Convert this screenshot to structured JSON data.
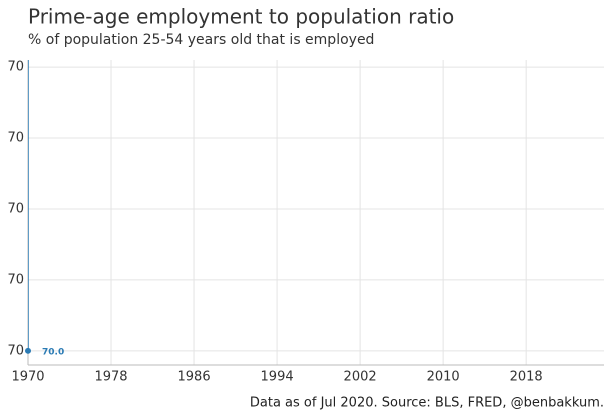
{
  "chart_data": {
    "type": "line",
    "title": "Prime-age employment to population ratio",
    "subtitle": "% of population 25-54 years old that is employed",
    "caption": "Data as of Jul 2020. Source: BLS, FRED, @benbakkum.",
    "x": [
      1970,
      1970
    ],
    "series": [
      {
        "color": "#2b7bb4",
        "values": [
          70,
          70.041
        ],
        "value_labels": [
          "70.0",
          null
        ]
      }
    ],
    "xlim": [
      1970,
      2025.5
    ],
    "xticks": [
      1970,
      1978,
      1986,
      1994,
      2002,
      2010,
      2018
    ],
    "ylim": [
      69.998,
      70.041
    ],
    "yticks": [
      70,
      {
        "value": 70.01,
        "label": "70"
      },
      {
        "value": 70.02,
        "label": "70"
      },
      {
        "value": 70.03,
        "label": "70"
      },
      {
        "value": 70.04,
        "label": "70"
      }
    ],
    "grid": true
  }
}
